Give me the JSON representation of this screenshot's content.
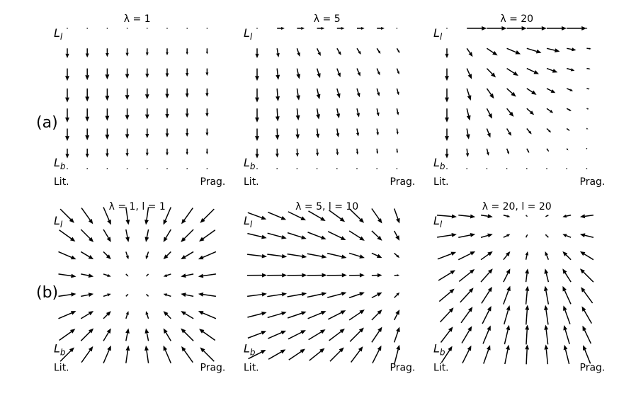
{
  "row_labels": [
    "(a)",
    "(b)"
  ],
  "chart_data": [
    {
      "type": "quiver",
      "row": 0,
      "col": 0,
      "title": "λ = 1",
      "field": "a",
      "params": {
        "lambda": 1
      },
      "xlabel_left": "Lit.",
      "xlabel_right": "Prag.",
      "ylabel_top": "L_l",
      "ylabel_bottom": "L_b",
      "grid": [
        8,
        8
      ],
      "xlim": [
        0,
        1
      ],
      "ylim": [
        0,
        1
      ]
    },
    {
      "type": "quiver",
      "row": 0,
      "col": 1,
      "title": "λ = 5",
      "field": "a",
      "params": {
        "lambda": 5
      },
      "xlabel_left": "Lit.",
      "xlabel_right": "Prag.",
      "ylabel_top": "L_l",
      "ylabel_bottom": "L_b",
      "grid": [
        8,
        8
      ],
      "xlim": [
        0,
        1
      ],
      "ylim": [
        0,
        1
      ]
    },
    {
      "type": "quiver",
      "row": 0,
      "col": 2,
      "title": "λ = 20",
      "field": "a",
      "params": {
        "lambda": 20
      },
      "xlabel_left": "Lit.",
      "xlabel_right": "Prag.",
      "ylabel_top": "L_l",
      "ylabel_bottom": "L_b",
      "grid": [
        8,
        8
      ],
      "xlim": [
        0,
        1
      ],
      "ylim": [
        0,
        1
      ]
    },
    {
      "type": "quiver",
      "row": 1,
      "col": 0,
      "title": "λ = 1, l = 1",
      "field": "b",
      "params": {
        "lambda": 1,
        "l": 1
      },
      "xlabel_left": "Lit.",
      "xlabel_right": "Prag.",
      "ylabel_top": "L_l",
      "ylabel_bottom": "L_b",
      "grid": [
        8,
        8
      ],
      "xlim": [
        0,
        1
      ],
      "ylim": [
        0,
        1
      ]
    },
    {
      "type": "quiver",
      "row": 1,
      "col": 1,
      "title": "λ = 5, l = 10",
      "field": "b",
      "params": {
        "lambda": 5,
        "l": 10
      },
      "xlabel_left": "Lit.",
      "xlabel_right": "Prag.",
      "ylabel_top": "L_l",
      "ylabel_bottom": "L_b",
      "grid": [
        8,
        8
      ],
      "xlim": [
        0,
        1
      ],
      "ylim": [
        0,
        1
      ]
    },
    {
      "type": "quiver",
      "row": 1,
      "col": 2,
      "title": "λ = 20, l = 20",
      "field": "b",
      "params": {
        "lambda": 20,
        "l": 20
      },
      "xlabel_left": "Lit.",
      "xlabel_right": "Prag.",
      "ylabel_top": "L_l",
      "ylabel_bottom": "L_b",
      "grid": [
        8,
        8
      ],
      "xlim": [
        0,
        1
      ],
      "ylim": [
        0,
        1
      ]
    }
  ]
}
